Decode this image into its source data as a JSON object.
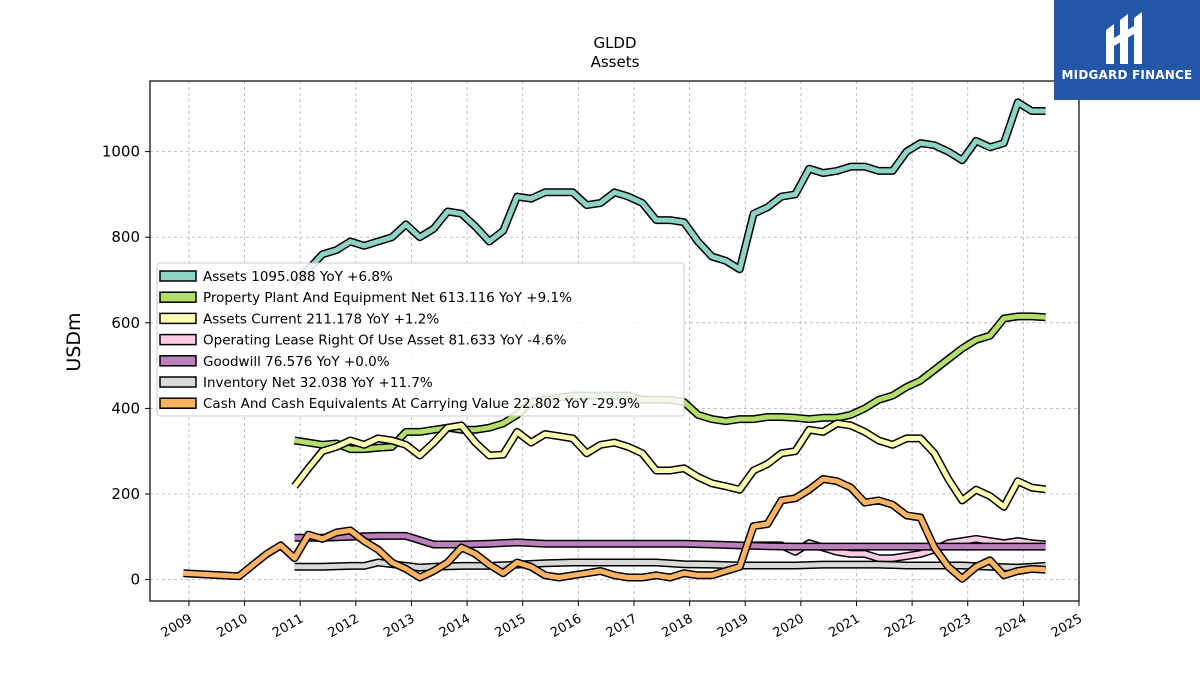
{
  "logo": {
    "text": "MIDGARD FINANCE",
    "icon": "midgard-m-logo-icon",
    "color": "#2456a8"
  },
  "chart_data": {
    "type": "line",
    "title": "GLDD",
    "subtitle": "Assets",
    "ylabel": "USDm",
    "xlabel": "",
    "ylim": [
      -50,
      1165
    ],
    "xlim": [
      2008.3,
      2025.0
    ],
    "grid": true,
    "legend_position": "middle-left",
    "yticks": [
      0,
      200,
      400,
      600,
      800,
      1000
    ],
    "xticks": [
      "2009",
      "2010",
      "2011",
      "2012",
      "2013",
      "2014",
      "2015",
      "2016",
      "2017",
      "2018",
      "2019",
      "2020",
      "2021",
      "2022",
      "2023",
      "2024",
      "2025"
    ],
    "series": [
      {
        "name": "Assets  1095.088 YoY +6.8%",
        "color": "#8dd3c7",
        "x": [
          2010.9,
          2011.15,
          2011.4,
          2011.65,
          2011.9,
          2012.15,
          2012.4,
          2012.65,
          2012.9,
          2013.15,
          2013.4,
          2013.65,
          2013.9,
          2014.15,
          2014.4,
          2014.65,
          2014.9,
          2015.15,
          2015.4,
          2015.65,
          2015.9,
          2016.15,
          2016.4,
          2016.65,
          2016.9,
          2017.15,
          2017.4,
          2017.65,
          2017.9,
          2018.15,
          2018.4,
          2018.65,
          2018.9,
          2019.15,
          2019.4,
          2019.65,
          2019.9,
          2020.15,
          2020.4,
          2020.65,
          2020.9,
          2021.15,
          2021.4,
          2021.65,
          2021.9,
          2022.15,
          2022.4,
          2022.65,
          2022.9,
          2023.15,
          2023.4,
          2023.65,
          2023.9,
          2024.15,
          2024.4
        ],
        "values": [
          695,
          725,
          760,
          770,
          790,
          780,
          790,
          800,
          830,
          800,
          820,
          860,
          855,
          825,
          790,
          815,
          895,
          890,
          905,
          905,
          905,
          875,
          880,
          905,
          895,
          880,
          840,
          840,
          835,
          790,
          755,
          745,
          725,
          855,
          870,
          895,
          900,
          960,
          950,
          955,
          965,
          965,
          955,
          955,
          1000,
          1020,
          1015,
          1000,
          980,
          1025,
          1010,
          1020,
          1115,
          1095,
          1095
        ]
      },
      {
        "name": "Property Plant And Equipment Net  613.116 YoY +9.1%",
        "color": "#b3de69",
        "x": [
          2010.9,
          2011.15,
          2011.4,
          2011.65,
          2011.9,
          2012.15,
          2012.4,
          2012.65,
          2012.9,
          2013.15,
          2013.4,
          2013.65,
          2013.9,
          2014.15,
          2014.4,
          2014.65,
          2014.9,
          2015.15,
          2015.4,
          2015.65,
          2015.9,
          2016.15,
          2016.4,
          2016.65,
          2016.9,
          2017.15,
          2017.4,
          2017.65,
          2017.9,
          2018.15,
          2018.4,
          2018.65,
          2018.9,
          2019.15,
          2019.4,
          2019.65,
          2019.9,
          2020.15,
          2020.4,
          2020.65,
          2020.9,
          2021.15,
          2021.4,
          2021.65,
          2021.9,
          2022.15,
          2022.4,
          2022.65,
          2022.9,
          2023.15,
          2023.4,
          2023.65,
          2023.9,
          2024.15,
          2024.4
        ],
        "values": [
          325,
          320,
          315,
          318,
          305,
          305,
          308,
          310,
          345,
          345,
          350,
          355,
          350,
          350,
          355,
          365,
          385,
          415,
          420,
          425,
          430,
          430,
          430,
          430,
          430,
          420,
          420,
          420,
          415,
          385,
          375,
          370,
          375,
          375,
          380,
          380,
          378,
          375,
          378,
          378,
          385,
          400,
          420,
          430,
          450,
          465,
          490,
          515,
          540,
          560,
          570,
          610,
          615,
          615,
          613
        ]
      },
      {
        "name": "Assets Current  211.178 YoY +1.2%",
        "color": "#ffffb3",
        "x": [
          2010.9,
          2011.15,
          2011.4,
          2011.65,
          2011.9,
          2012.15,
          2012.4,
          2012.65,
          2012.9,
          2013.15,
          2013.4,
          2013.65,
          2013.9,
          2014.15,
          2014.4,
          2014.65,
          2014.9,
          2015.15,
          2015.4,
          2015.65,
          2015.9,
          2016.15,
          2016.4,
          2016.65,
          2016.9,
          2017.15,
          2017.4,
          2017.65,
          2017.9,
          2018.15,
          2018.4,
          2018.65,
          2018.9,
          2019.15,
          2019.4,
          2019.65,
          2019.9,
          2020.15,
          2020.4,
          2020.65,
          2020.9,
          2021.15,
          2021.4,
          2021.65,
          2021.9,
          2022.15,
          2022.4,
          2022.65,
          2022.9,
          2023.15,
          2023.4,
          2023.65,
          2023.9,
          2024.15,
          2024.4
        ],
        "values": [
          218,
          260,
          300,
          310,
          325,
          315,
          330,
          325,
          315,
          290,
          320,
          355,
          360,
          320,
          290,
          292,
          345,
          320,
          340,
          335,
          330,
          295,
          315,
          320,
          310,
          295,
          255,
          255,
          260,
          240,
          225,
          218,
          210,
          255,
          270,
          295,
          300,
          350,
          345,
          365,
          360,
          345,
          325,
          315,
          330,
          330,
          295,
          235,
          185,
          210,
          195,
          170,
          230,
          215,
          211
        ]
      },
      {
        "name": "Operating Lease Right Of Use Asset  81.633 YoY -4.6%",
        "color": "#fccde5",
        "x": [
          2019.15,
          2019.4,
          2019.65,
          2019.9,
          2020.15,
          2020.4,
          2020.65,
          2020.9,
          2021.15,
          2021.4,
          2021.65,
          2021.9,
          2022.15,
          2022.4,
          2022.65,
          2022.9,
          2023.15,
          2023.4,
          2023.65,
          2023.9,
          2024.15,
          2024.4
        ],
        "values": [
          80,
          80,
          80,
          65,
          85,
          75,
          65,
          60,
          60,
          50,
          50,
          55,
          60,
          70,
          85,
          90,
          95,
          90,
          85,
          90,
          85,
          82
        ]
      },
      {
        "name": "Goodwill  76.576 YoY +0.0%",
        "color": "#bc80bd",
        "x": [
          2010.9,
          2011.4,
          2011.9,
          2012.4,
          2012.9,
          2013.4,
          2013.9,
          2014.4,
          2014.9,
          2015.4,
          2015.9,
          2016.4,
          2016.9,
          2017.4,
          2017.9,
          2018.4,
          2018.9,
          2019.4,
          2019.9,
          2020.4,
          2020.9,
          2021.4,
          2021.9,
          2022.4,
          2022.9,
          2023.4,
          2023.9,
          2024.4
        ],
        "values": [
          98,
          98,
          100,
          102,
          102,
          82,
          82,
          84,
          87,
          84,
          84,
          84,
          84,
          84,
          84,
          82,
          80,
          78,
          77,
          77,
          77,
          77,
          77,
          77,
          77,
          77,
          77,
          77
        ]
      },
      {
        "name": "Inventory Net  32.038 YoY +11.7%",
        "color": "#d9d9d9",
        "x": [
          2010.9,
          2011.4,
          2011.9,
          2012.15,
          2012.4,
          2012.65,
          2012.9,
          2013.15,
          2013.4,
          2013.9,
          2014.4,
          2014.9,
          2015.4,
          2015.9,
          2016.4,
          2016.9,
          2017.4,
          2017.9,
          2018.4,
          2018.9,
          2019.4,
          2019.9,
          2020.4,
          2020.9,
          2021.4,
          2021.9,
          2022.4,
          2022.9,
          2023.4,
          2023.9,
          2024.4
        ],
        "values": [
          30,
          30,
          32,
          32,
          40,
          36,
          32,
          28,
          30,
          32,
          32,
          35,
          38,
          40,
          40,
          40,
          40,
          36,
          35,
          33,
          33,
          33,
          35,
          35,
          35,
          33,
          33,
          33,
          30,
          28,
          32
        ]
      },
      {
        "name": "Cash And Cash Equivalents At Carrying Value  22.802 YoY -29.9%",
        "color": "#fdb462",
        "x": [
          2008.9,
          2009.9,
          2010.4,
          2010.65,
          2010.9,
          2011.15,
          2011.4,
          2011.65,
          2011.9,
          2012.15,
          2012.4,
          2012.65,
          2012.9,
          2013.15,
          2013.4,
          2013.65,
          2013.9,
          2014.15,
          2014.4,
          2014.65,
          2014.9,
          2015.15,
          2015.4,
          2015.65,
          2015.9,
          2016.15,
          2016.4,
          2016.65,
          2016.9,
          2017.15,
          2017.4,
          2017.65,
          2017.9,
          2018.15,
          2018.4,
          2018.65,
          2018.9,
          2019.15,
          2019.4,
          2019.65,
          2019.9,
          2020.15,
          2020.4,
          2020.65,
          2020.9,
          2021.15,
          2021.4,
          2021.65,
          2021.9,
          2022.15,
          2022.4,
          2022.65,
          2022.9,
          2023.15,
          2023.4,
          2023.65,
          2023.9,
          2024.15,
          2024.4
        ],
        "values": [
          15,
          8,
          60,
          80,
          50,
          105,
          95,
          110,
          115,
          90,
          70,
          40,
          25,
          5,
          20,
          40,
          75,
          60,
          35,
          15,
          40,
          30,
          10,
          5,
          10,
          15,
          20,
          10,
          5,
          5,
          10,
          5,
          15,
          10,
          10,
          20,
          30,
          125,
          130,
          185,
          190,
          210,
          235,
          230,
          215,
          180,
          185,
          175,
          150,
          145,
          75,
          30,
          2,
          30,
          45,
          10,
          20,
          25,
          23
        ]
      }
    ]
  }
}
